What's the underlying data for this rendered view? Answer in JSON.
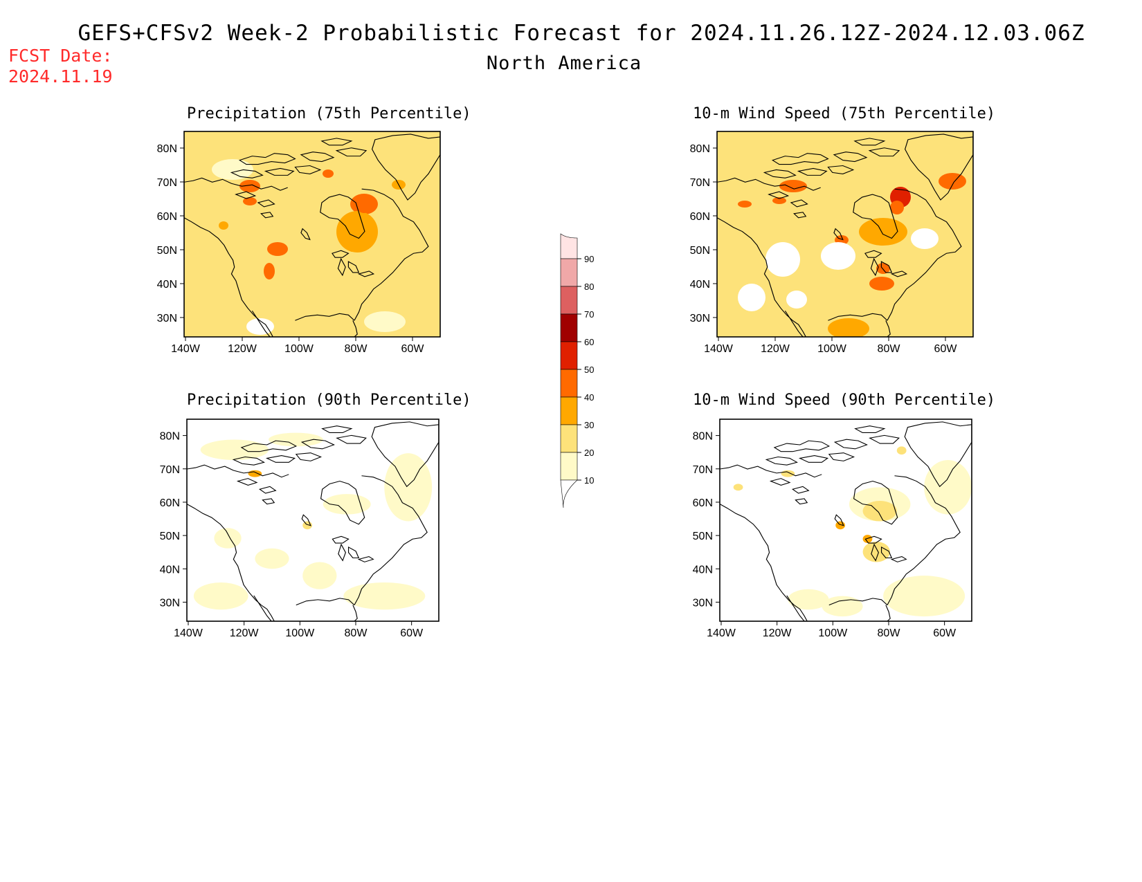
{
  "header": {
    "title": "GEFS+CFSv2 Week-2 Probabilistic Forecast for 2024.11.26.12Z-2024.12.03.06Z",
    "region": "North America",
    "fcst_label": "FCST Date:",
    "fcst_date": "2024.11.19"
  },
  "colors": {
    "levels": [
      "#fffac8",
      "#fde27a",
      "#ffa800",
      "#ff6a00",
      "#e02000",
      "#a00000",
      "#dd6060",
      "#f0a8a8",
      "#ffe4e4"
    ],
    "coast": "#000000"
  },
  "colorbar": {
    "labels": [
      "90",
      "80",
      "70",
      "60",
      "50",
      "40",
      "30",
      "20",
      "10"
    ]
  },
  "lat_labels": [
    "80N",
    "70N",
    "60N",
    "50N",
    "40N",
    "30N"
  ],
  "lon_labels": [
    "140W",
    "120W",
    "100W",
    "80W",
    "60W"
  ],
  "panels": [
    {
      "title": "Precipitation (75th Percentile)"
    },
    {
      "title": "10-m Wind Speed (75th Percentile)"
    },
    {
      "title": "Precipitation (90th Percentile)"
    },
    {
      "title": "10-m Wind Speed (90th Percentile)"
    }
  ]
}
